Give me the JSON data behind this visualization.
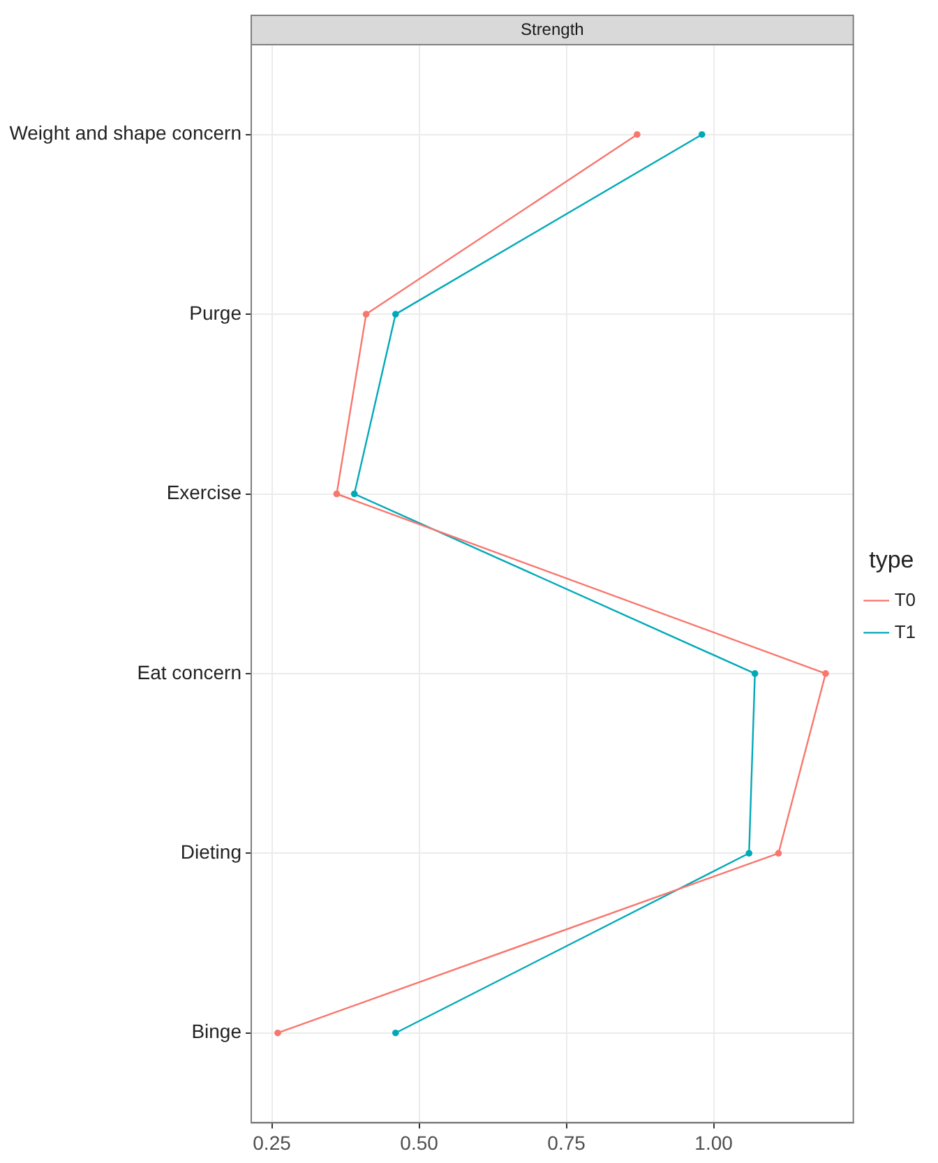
{
  "chart_data": {
    "type": "line",
    "title": "Strength",
    "legend_title": "type",
    "orientation": "horizontal",
    "categories": [
      "Weight and shape concern",
      "Purge",
      "Exercise",
      "Eat concern",
      "Dieting",
      "Binge"
    ],
    "series": [
      {
        "name": "T0",
        "color": "#f8766d",
        "values": [
          0.87,
          0.41,
          0.36,
          1.19,
          1.11,
          0.26
        ]
      },
      {
        "name": "T1",
        "color": "#00a9b8",
        "values": [
          0.98,
          0.46,
          0.39,
          1.07,
          1.06,
          0.46
        ]
      }
    ],
    "xlim": [
      0.215,
      1.237
    ],
    "xticks": [
      0.25,
      {
        "value": 0.5,
        "label": "0.50"
      },
      0.75,
      {
        "value": 1.0,
        "label": "1.00"
      }
    ],
    "grid": true,
    "legend": "right",
    "marker": "circle",
    "line_style": "solid"
  }
}
